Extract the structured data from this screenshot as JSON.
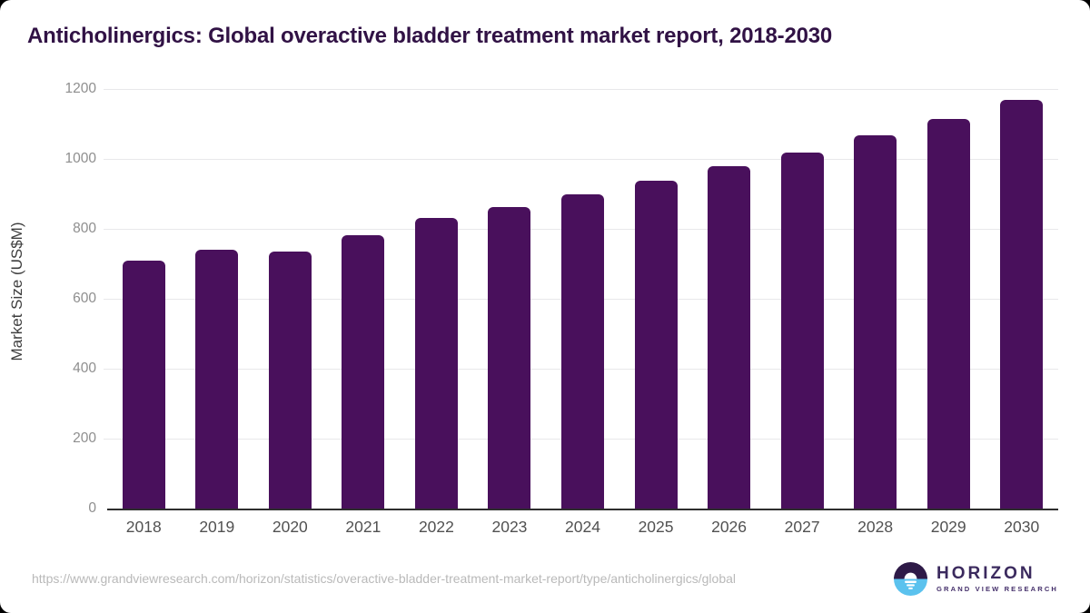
{
  "title": "Anticholinergics: Global overactive bladder treatment market report, 2018-2030",
  "chart_data": {
    "type": "bar",
    "categories": [
      "2018",
      "2019",
      "2020",
      "2021",
      "2022",
      "2023",
      "2024",
      "2025",
      "2026",
      "2027",
      "2028",
      "2029",
      "2030"
    ],
    "values": [
      710,
      740,
      736,
      783,
      830,
      863,
      900,
      937,
      980,
      1019,
      1067,
      1114,
      1168
    ],
    "title": "Anticholinergics: Global overactive bladder treatment market report, 2018-2030",
    "xlabel": "",
    "ylabel": "Market Size (US$M)",
    "ylim": [
      0,
      1200
    ],
    "yticks": [
      0,
      200,
      400,
      600,
      800,
      1000,
      1200
    ],
    "grid": true,
    "legend": "none",
    "bar_color": "#49105c"
  },
  "footer": {
    "source_url": "https://www.grandviewresearch.com/horizon/statistics/overactive-bladder-treatment-market-report/type/anticholinergics/global",
    "logo": {
      "name": "HORIZON",
      "subtitle": "GRAND VIEW RESEARCH",
      "icon": "sunset-horizon-icon",
      "purple": "#2e1a47",
      "blue": "#5bc2ee"
    }
  }
}
